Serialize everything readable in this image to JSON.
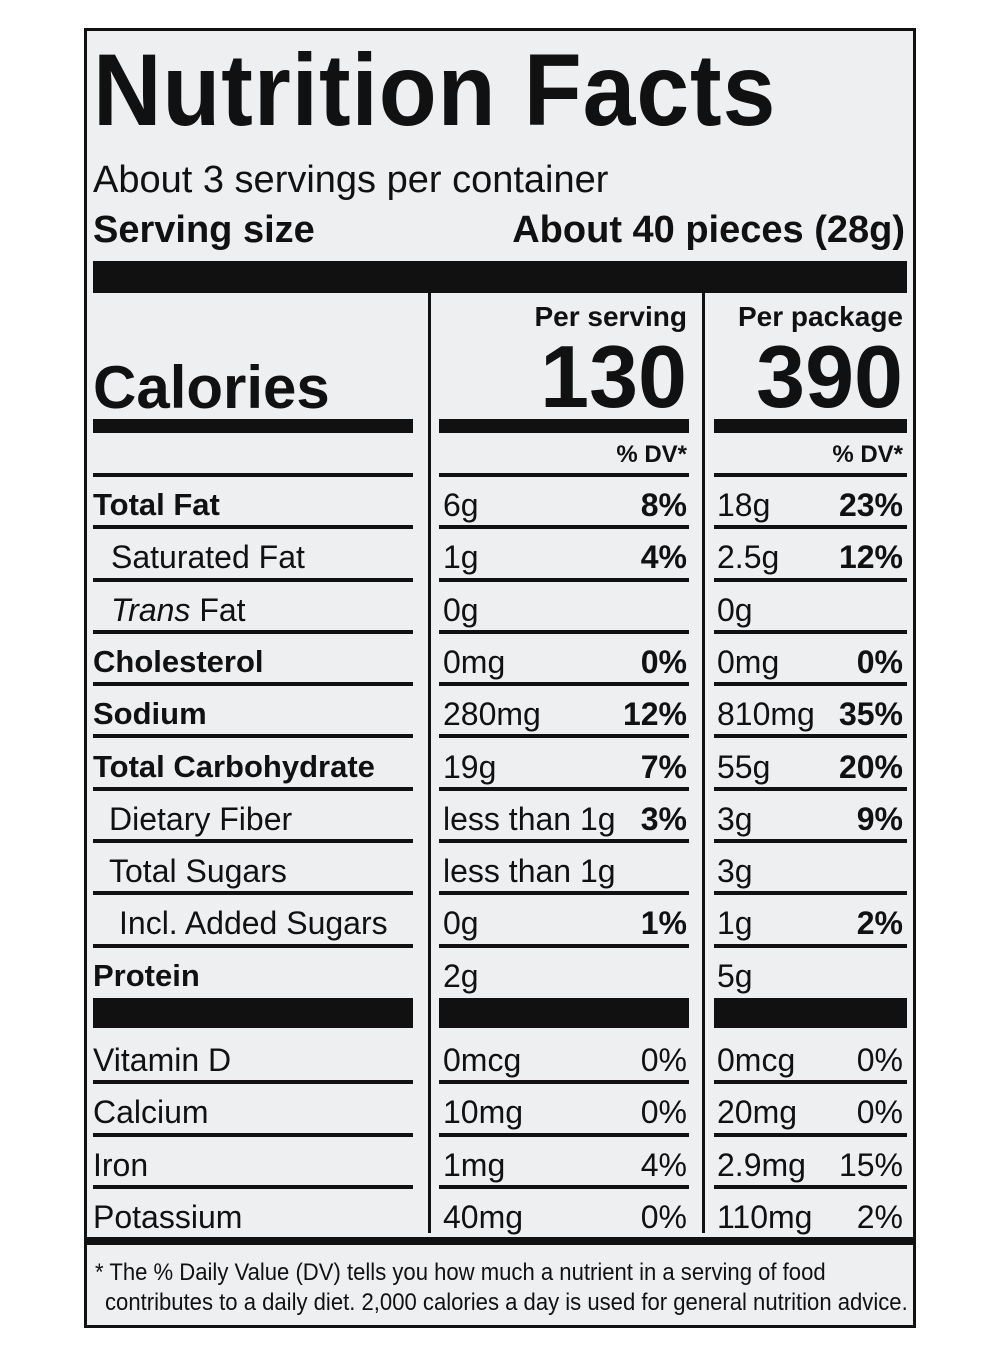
{
  "title": "Nutrition Facts",
  "servings_per_container": "About 3 servings per container",
  "serving_size_label": "Serving size",
  "serving_size_value": "About 40 pieces (28g)",
  "col_serving_header": "Per serving",
  "col_package_header": "Per package",
  "calories_label": "Calories",
  "calories_serving": "130",
  "calories_package": "390",
  "dv_header": "% DV*",
  "nutrients": [
    {
      "name": "Total Fat",
      "s_amt": "6g",
      "s_dv": "8%",
      "p_amt": "18g",
      "p_dv": "23%"
    },
    {
      "name": "Saturated Fat",
      "s_amt": "1g",
      "s_dv": "4%",
      "p_amt": "2.5g",
      "p_dv": "12%"
    },
    {
      "name_italic": "Trans",
      "name_rest": " Fat",
      "s_amt": "0g",
      "s_dv": "",
      "p_amt": "0g",
      "p_dv": ""
    },
    {
      "name": "Cholesterol",
      "s_amt": "0mg",
      "s_dv": "0%",
      "p_amt": "0mg",
      "p_dv": "0%"
    },
    {
      "name": "Sodium",
      "s_amt": "280mg",
      "s_dv": "12%",
      "p_amt": "810mg",
      "p_dv": "35%"
    },
    {
      "name": "Total Carbohydrate",
      "s_amt": "19g",
      "s_dv": "7%",
      "p_amt": "55g",
      "p_dv": "20%"
    },
    {
      "name": "Dietary Fiber",
      "s_amt": "less than 1g",
      "s_dv": "3%",
      "p_amt": "3g",
      "p_dv": "9%"
    },
    {
      "name": "Total Sugars",
      "s_amt": "less than 1g",
      "s_dv": "",
      "p_amt": "3g",
      "p_dv": ""
    },
    {
      "name": "Incl. Added Sugars",
      "s_amt": "0g",
      "s_dv": "1%",
      "p_amt": "1g",
      "p_dv": "2%"
    },
    {
      "name": "Protein",
      "s_amt": "2g",
      "s_dv": "",
      "p_amt": "5g",
      "p_dv": ""
    }
  ],
  "micros": [
    {
      "name": "Vitamin D",
      "s_amt": "0mcg",
      "s_dv": "0%",
      "p_amt": "0mcg",
      "p_dv": "0%"
    },
    {
      "name": "Calcium",
      "s_amt": "10mg",
      "s_dv": "0%",
      "p_amt": "20mg",
      "p_dv": "0%"
    },
    {
      "name": "Iron",
      "s_amt": "1mg",
      "s_dv": "4%",
      "p_amt": "2.9mg",
      "p_dv": "15%"
    },
    {
      "name": "Potassium",
      "s_amt": "40mg",
      "s_dv": "0%",
      "p_amt": "110mg",
      "p_dv": "2%"
    }
  ],
  "footnote_line1": "* The % Daily Value (DV) tells you how much a nutrient in a serving of food",
  "footnote_line2": "contributes to a daily diet. 2,000 calories a day is used for general nutrition advice."
}
